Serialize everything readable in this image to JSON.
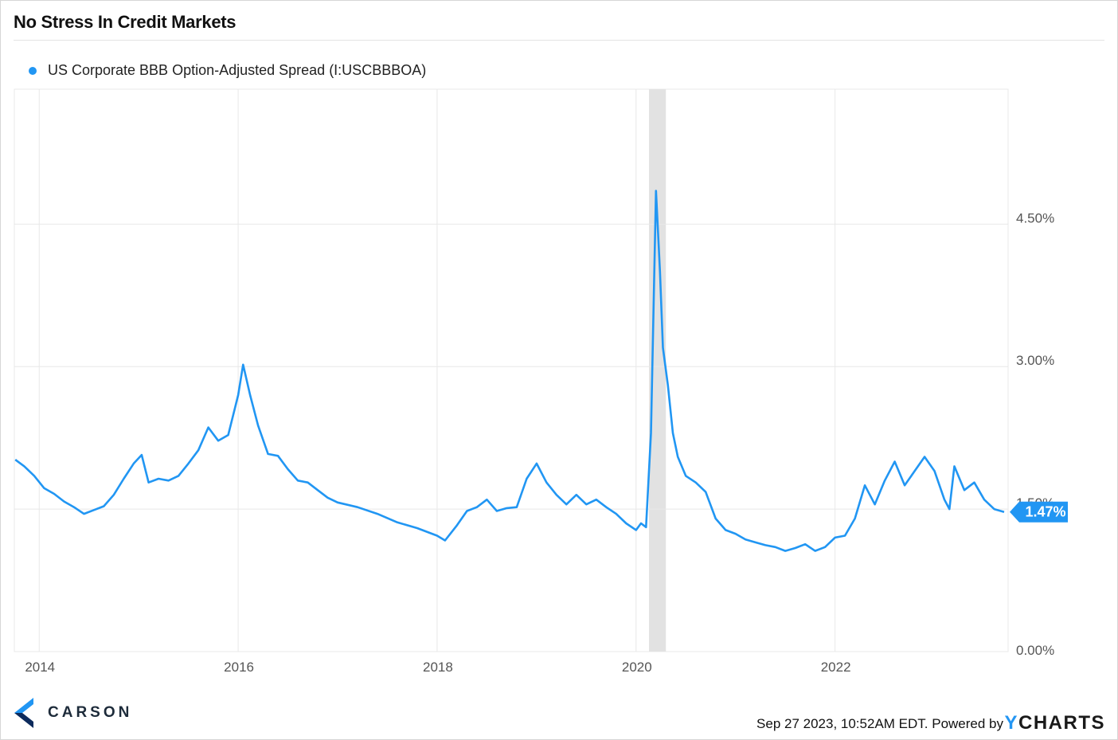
{
  "title": "No Stress In Credit Markets",
  "legend": {
    "label": "US Corporate BBB Option-Adjusted Spread (I:USCBBBOA)"
  },
  "colors": {
    "series": "#2196f3",
    "recession": "#e2e2e2",
    "grid": "#e8e8e8",
    "text": "#555555"
  },
  "footer": {
    "date_text": "Sep 27 2023, 10:52AM EDT. Powered by",
    "brand_y": "Y",
    "brand_rest": "CHARTS"
  },
  "logo": {
    "text": "CARSON"
  },
  "chart_data": {
    "type": "line",
    "title": "No Stress In Credit Markets",
    "xlabel": "",
    "ylabel": "",
    "x_range": [
      2013.75,
      2023.74
    ],
    "ylim": [
      0,
      5.92
    ],
    "y_ticks": [
      0,
      1.5,
      3.0,
      4.5
    ],
    "y_tick_labels": [
      "0.00%",
      "1.50%",
      "3.00%",
      "4.50%"
    ],
    "x_ticks": [
      2014,
      2016,
      2018,
      2020,
      2022
    ],
    "x_tick_labels": [
      "2014",
      "2016",
      "2018",
      "2020",
      "2022"
    ],
    "grid": true,
    "legend_position": "top-left",
    "recession_shading": [
      {
        "start": 2020.13,
        "end": 2020.3
      }
    ],
    "last_value_label": "1.47%",
    "series": [
      {
        "name": "US Corporate BBB Option-Adjusted Spread (I:USCBBBOA)",
        "x": [
          2013.76,
          2013.85,
          2013.95,
          2014.05,
          2014.15,
          2014.25,
          2014.35,
          2014.45,
          2014.55,
          2014.65,
          2014.75,
          2014.85,
          2014.95,
          2015.03,
          2015.1,
          2015.2,
          2015.3,
          2015.4,
          2015.5,
          2015.6,
          2015.7,
          2015.8,
          2015.9,
          2016.0,
          2016.05,
          2016.12,
          2016.2,
          2016.3,
          2016.4,
          2016.5,
          2016.6,
          2016.7,
          2016.8,
          2016.9,
          2017.0,
          2017.2,
          2017.4,
          2017.6,
          2017.8,
          2018.0,
          2018.08,
          2018.2,
          2018.3,
          2018.4,
          2018.5,
          2018.6,
          2018.7,
          2018.8,
          2018.9,
          2019.0,
          2019.1,
          2019.2,
          2019.3,
          2019.4,
          2019.5,
          2019.6,
          2019.7,
          2019.8,
          2019.9,
          2020.0,
          2020.05,
          2020.1,
          2020.15,
          2020.2,
          2020.24,
          2020.27,
          2020.32,
          2020.37,
          2020.42,
          2020.5,
          2020.6,
          2020.7,
          2020.8,
          2020.9,
          2021.0,
          2021.1,
          2021.2,
          2021.3,
          2021.4,
          2021.5,
          2021.6,
          2021.7,
          2021.8,
          2021.9,
          2022.0,
          2022.1,
          2022.2,
          2022.3,
          2022.4,
          2022.5,
          2022.6,
          2022.7,
          2022.8,
          2022.9,
          2023.0,
          2023.1,
          2023.15,
          2023.2,
          2023.3,
          2023.4,
          2023.5,
          2023.6,
          2023.7
        ],
        "values": [
          2.02,
          1.95,
          1.85,
          1.72,
          1.66,
          1.58,
          1.52,
          1.45,
          1.49,
          1.53,
          1.65,
          1.82,
          1.98,
          2.07,
          1.78,
          1.82,
          1.8,
          1.85,
          1.98,
          2.12,
          2.36,
          2.22,
          2.28,
          2.7,
          3.02,
          2.7,
          2.38,
          2.08,
          2.06,
          1.92,
          1.8,
          1.78,
          1.7,
          1.62,
          1.57,
          1.52,
          1.45,
          1.36,
          1.3,
          1.22,
          1.17,
          1.33,
          1.48,
          1.52,
          1.6,
          1.48,
          1.51,
          1.52,
          1.82,
          1.98,
          1.78,
          1.65,
          1.55,
          1.65,
          1.55,
          1.6,
          1.52,
          1.45,
          1.35,
          1.28,
          1.35,
          1.31,
          2.3,
          4.85,
          4.0,
          3.2,
          2.8,
          2.3,
          2.05,
          1.85,
          1.78,
          1.68,
          1.4,
          1.28,
          1.24,
          1.18,
          1.15,
          1.12,
          1.1,
          1.06,
          1.09,
          1.13,
          1.06,
          1.1,
          1.2,
          1.22,
          1.4,
          1.75,
          1.55,
          1.8,
          2.0,
          1.75,
          1.9,
          2.05,
          1.9,
          1.6,
          1.5,
          1.95,
          1.7,
          1.78,
          1.6,
          1.5,
          1.47
        ]
      }
    ]
  }
}
